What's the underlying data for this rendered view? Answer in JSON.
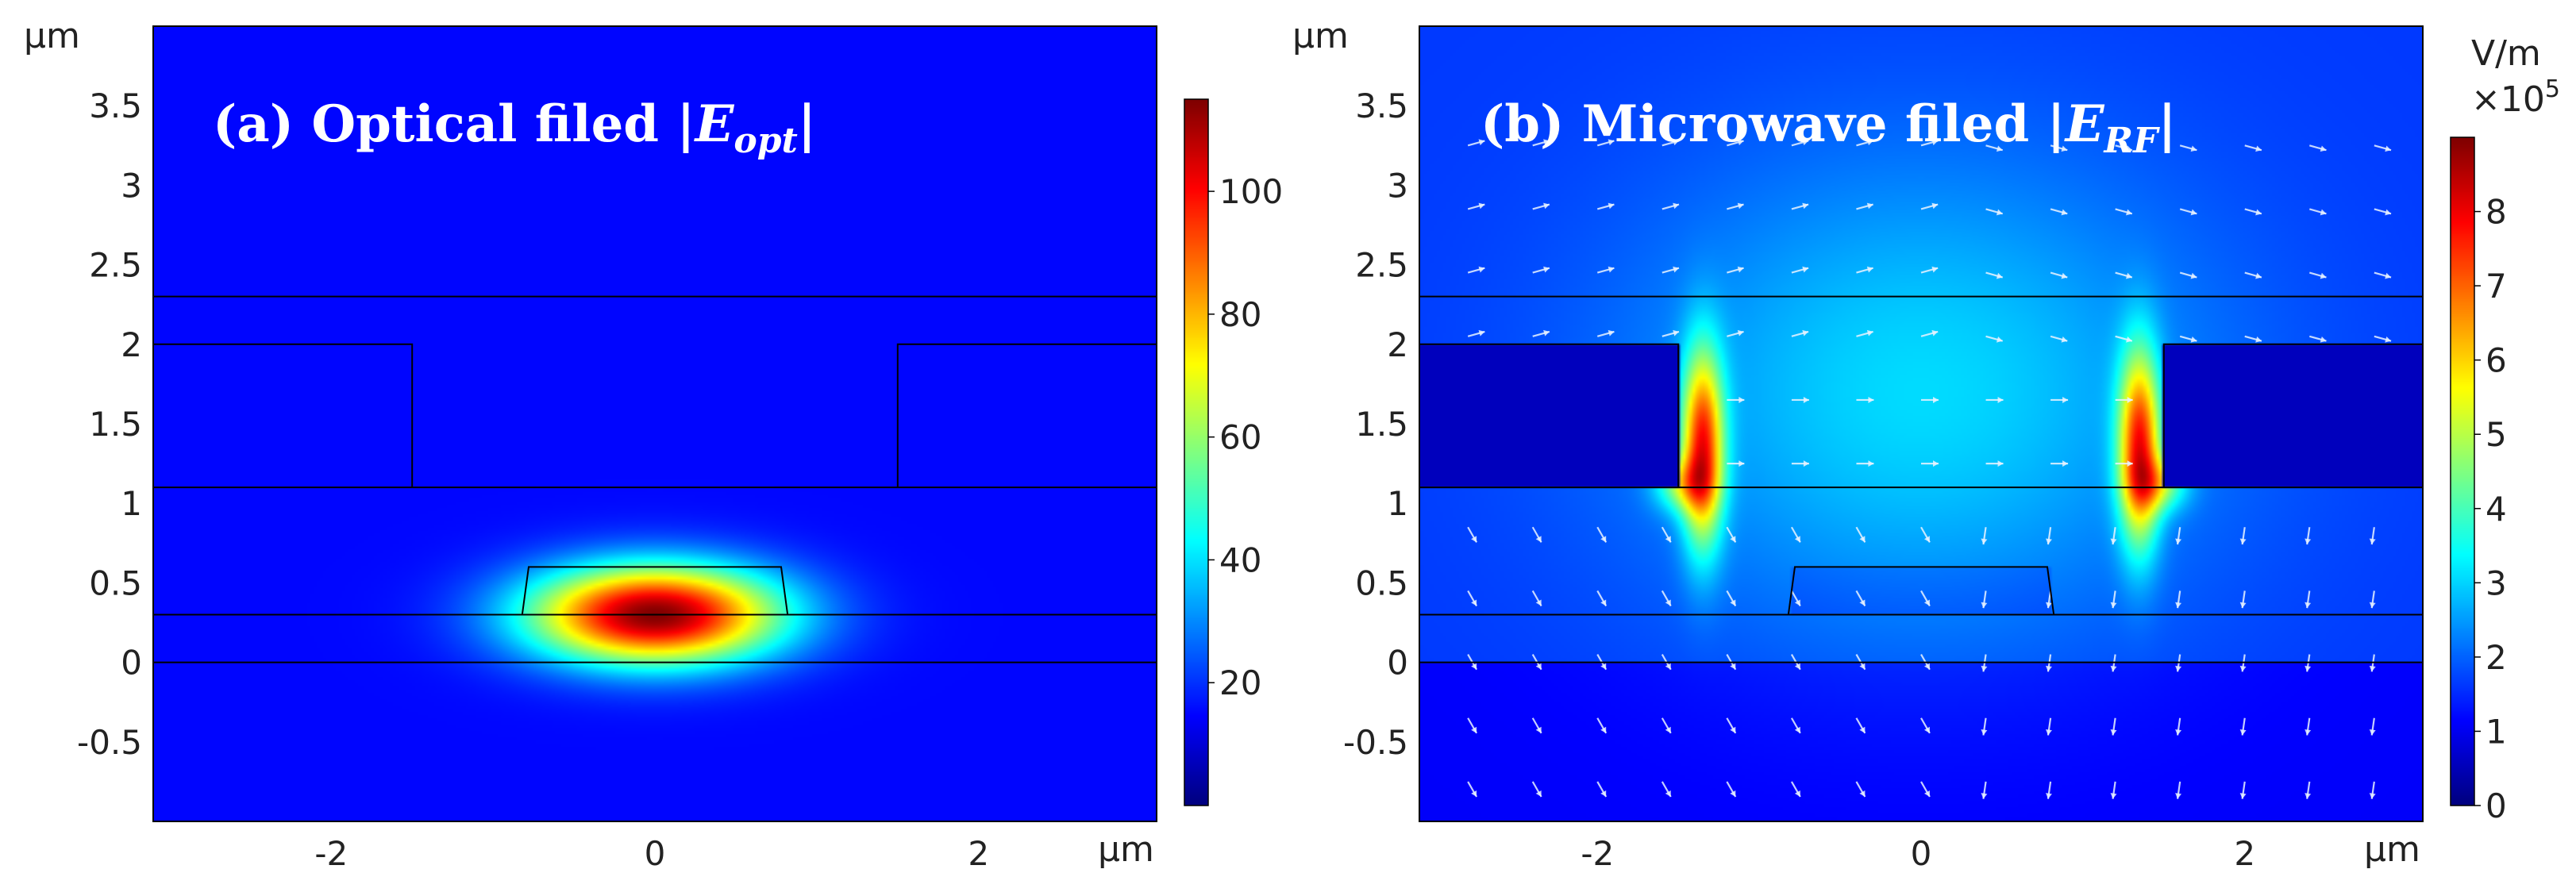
{
  "chart_data": [
    {
      "type": "heatmap",
      "title_prefix": "(a) Optical filed |",
      "title_symbol": "E",
      "title_subscript": "opt",
      "title_suffix": "|",
      "xunit": "μm",
      "yunit": "μm",
      "xlim": [
        -3.1,
        3.1
      ],
      "ylim": [
        -1.0,
        4.0
      ],
      "xticks": [
        "-2",
        "0",
        "2"
      ],
      "xtick_values": [
        -2,
        0,
        2
      ],
      "yticks": [
        "-0.5",
        "0",
        "0.5",
        "1",
        "1.5",
        "2",
        "2.5",
        "3",
        "3.5"
      ],
      "ytick_values": [
        -0.5,
        0,
        0.5,
        1,
        1.5,
        2,
        2.5,
        3,
        3.5
      ],
      "colorbar": {
        "range": [
          0,
          115
        ],
        "ticks": [
          "20",
          "40",
          "60",
          "80",
          "100"
        ],
        "tick_values": [
          20,
          40,
          60,
          80,
          100
        ],
        "unit": "",
        "multiplier_base": "",
        "multiplier_exp": ""
      },
      "field": {
        "kind": "gaussian_mode",
        "center_x": 0.0,
        "center_y": 0.3,
        "sigma_x": 0.55,
        "sigma_y": 0.22,
        "peak": 115
      },
      "structure_lines": {
        "layer_boundaries_y": [
          0.0,
          0.3,
          1.1,
          2.3
        ],
        "electrode_left": {
          "x_inner": -1.5,
          "y_bottom": 1.1,
          "y_top": 2.0
        },
        "electrode_right": {
          "x_inner": 1.5,
          "y_bottom": 1.1,
          "y_top": 2.0
        },
        "waveguide": {
          "bottom_x": [
            -0.82,
            0.82
          ],
          "top_x": [
            -0.78,
            0.78
          ],
          "y_bottom": 0.3,
          "y_top": 0.6
        }
      }
    },
    {
      "type": "heatmap",
      "title_prefix": "(b) Microwave filed |",
      "title_symbol": "E",
      "title_subscript": "RF",
      "title_suffix": "|",
      "xunit": "μm",
      "yunit": "μm",
      "xlim": [
        -3.1,
        3.1
      ],
      "ylim": [
        -1.0,
        4.0
      ],
      "xticks": [
        "-2",
        "0",
        "2"
      ],
      "xtick_values": [
        -2,
        0,
        2
      ],
      "yticks": [
        "-0.5",
        "0",
        "0.5",
        "1",
        "1.5",
        "2",
        "2.5",
        "3",
        "3.5"
      ],
      "ytick_values": [
        -0.5,
        0,
        0.5,
        1,
        1.5,
        2,
        2.5,
        3,
        3.5
      ],
      "colorbar": {
        "range": [
          0,
          9
        ],
        "ticks": [
          "0",
          "1",
          "2",
          "3",
          "4",
          "5",
          "6",
          "7",
          "8"
        ],
        "tick_values": [
          0,
          1,
          2,
          3,
          4,
          5,
          6,
          7,
          8
        ],
        "unit": "V/m",
        "multiplier_base": "×10",
        "multiplier_exp": "5"
      },
      "field": {
        "kind": "coplanar_electrode_field",
        "electrode_gap_edges_x": [
          -1.5,
          1.5
        ],
        "peak": 9
      },
      "has_arrows": true,
      "structure_lines": {
        "layer_boundaries_y": [
          0.0,
          0.3,
          1.1,
          2.3
        ],
        "electrode_left": {
          "x_inner": -1.5,
          "y_bottom": 1.1,
          "y_top": 2.0
        },
        "electrode_right": {
          "x_inner": 1.5,
          "y_bottom": 1.1,
          "y_top": 2.0
        },
        "waveguide": {
          "bottom_x": [
            -0.82,
            0.82
          ],
          "top_x": [
            -0.78,
            0.78
          ],
          "y_bottom": 0.3,
          "y_top": 0.6
        }
      }
    }
  ],
  "colors": {
    "jet": [
      "#000080",
      "#0000ff",
      "#0080ff",
      "#00ffff",
      "#80ff80",
      "#ffff00",
      "#ff8000",
      "#ff0000",
      "#800000"
    ],
    "background_low": "#14198c",
    "line": "#000000",
    "title": "#ffffff"
  }
}
